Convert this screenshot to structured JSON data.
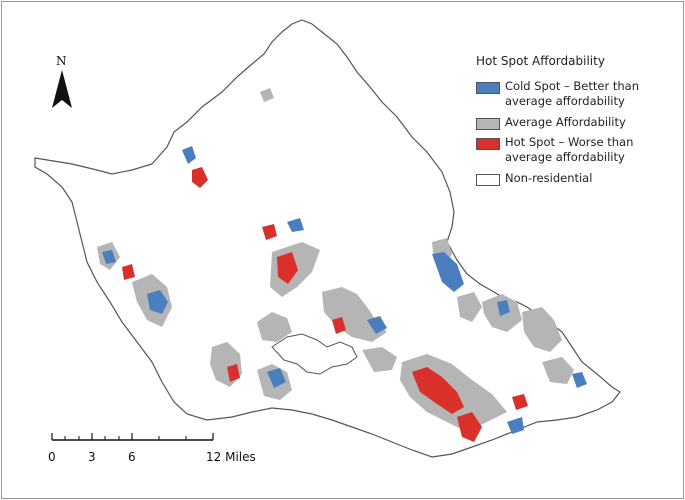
{
  "legend": {
    "title": "Hot Spot Affordability",
    "items": [
      {
        "label_line1": "Cold Spot – Better than",
        "label_line2": "average affordability",
        "color": "#4a7ebf"
      },
      {
        "label_line1": "Average Affordability",
        "label_line2": "",
        "color": "#b5b5b5"
      },
      {
        "label_line1": "Hot Spot – Worse than",
        "label_line2": "average affordability",
        "color": "#d9302c"
      },
      {
        "label_line1": "Non-residential",
        "label_line2": "",
        "color": "#ffffff"
      }
    ]
  },
  "north_arrow": {
    "letter": "N"
  },
  "scale_bar": {
    "labels": [
      "0",
      "3",
      "6",
      "12 Miles"
    ]
  },
  "colors": {
    "island_outline": "#555555",
    "cold": "#4a7ebf",
    "average": "#b5b5b5",
    "hot": "#d9302c"
  }
}
